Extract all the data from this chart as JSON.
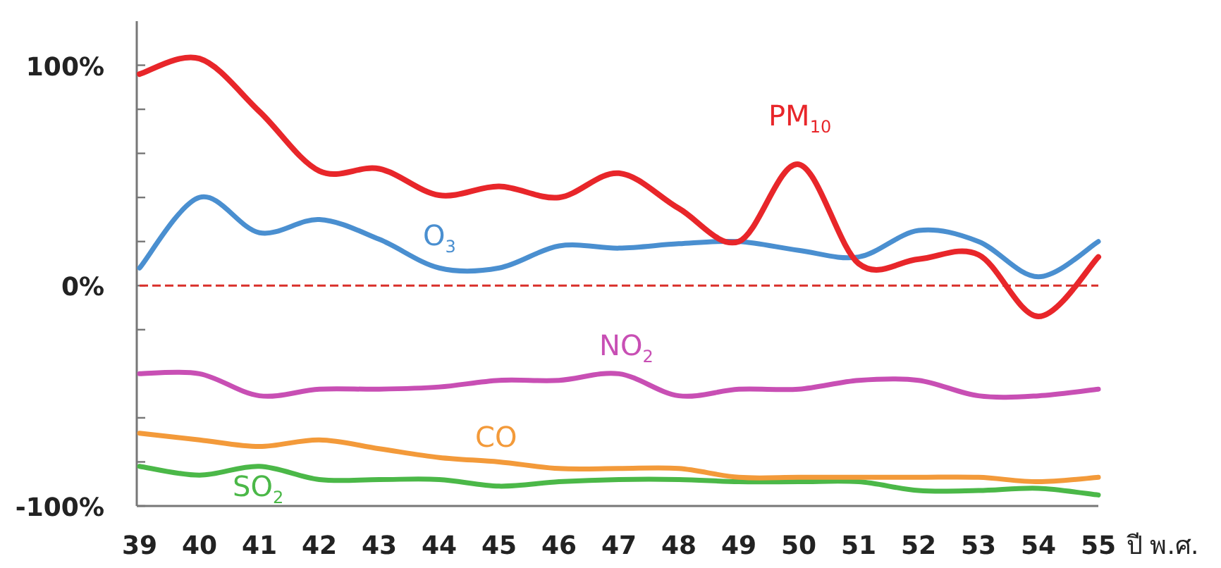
{
  "chart_data": {
    "type": "line",
    "xlabel": "ปี พ.ศ.",
    "categories": [
      "39",
      "40",
      "41",
      "42",
      "43",
      "44",
      "45",
      "46",
      "47",
      "48",
      "49",
      "50",
      "51",
      "52",
      "53",
      "54",
      "55"
    ],
    "series": [
      {
        "name": "PM$_{10}$",
        "color": "#e8262a",
        "values": [
          96,
          103,
          79,
          52,
          53,
          41,
          45,
          40,
          51,
          35,
          20,
          55,
          10,
          12,
          14,
          -14,
          13
        ]
      },
      {
        "name": "O$_{3}$",
        "color": "#4a8fd0",
        "values": [
          8,
          40,
          24,
          30,
          21,
          8,
          8,
          18,
          17,
          19,
          20,
          16,
          13,
          25,
          20,
          4,
          20
        ]
      },
      {
        "name": "NO$_{2}$",
        "color": "#c84fb4",
        "values": [
          -40,
          -40,
          -50,
          -47,
          -47,
          -46,
          -43,
          -43,
          -40,
          -50,
          -47,
          -47,
          -43,
          -43,
          -50,
          -50,
          -47
        ]
      },
      {
        "name": "CO",
        "color": "#f39a3a",
        "values": [
          -67,
          -70,
          -73,
          -70,
          -74,
          -78,
          -80,
          -83,
          -83,
          -83,
          -87,
          -87,
          -87,
          -87,
          -87,
          -89,
          -87
        ]
      },
      {
        "name": "SO$_{2}$",
        "color": "#4bb848",
        "values": [
          -82,
          -86,
          -82,
          -88,
          -88,
          -88,
          -91,
          -89,
          -88,
          -88,
          -89,
          -89,
          -89,
          -93,
          -93,
          -92,
          -95
        ]
      }
    ],
    "ylim": [
      -100,
      120
    ],
    "yticks": [
      {
        "value": 100,
        "label": "100%"
      },
      {
        "value": 80,
        "label": null
      },
      {
        "value": 60,
        "label": null
      },
      {
        "value": 40,
        "label": null
      },
      {
        "value": 20,
        "label": null
      },
      {
        "value": 0,
        "label": "0%"
      },
      {
        "value": -20,
        "label": null
      },
      {
        "value": -40,
        "label": null
      },
      {
        "value": -60,
        "label": null
      },
      {
        "value": -80,
        "label": null
      },
      {
        "value": -100,
        "label": "-100%"
      }
    ],
    "ref_lines": [
      {
        "axis": "y",
        "value": 0,
        "color": "#d9302b",
        "line_style": "dashed"
      }
    ],
    "grid": false,
    "marker": "none",
    "line_style": "solid"
  }
}
